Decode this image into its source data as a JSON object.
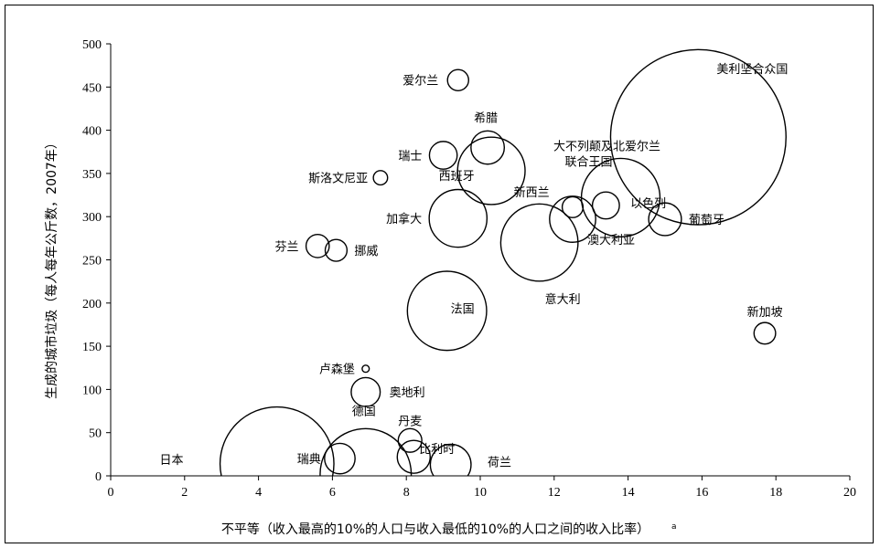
{
  "chart_data": {
    "type": "scatter",
    "subtype": "bubble",
    "title": "",
    "xlabel": "不平等（收入最高的10%的人口与收入最低的10%的人口之间的收入比率）",
    "xlabel_superscript": "a",
    "ylabel": "生成的城市垃圾（每人每年公斤数，2007年）",
    "xlim": [
      0,
      20
    ],
    "ylim": [
      0,
      500
    ],
    "xticks": [
      0,
      2,
      4,
      6,
      8,
      10,
      12,
      14,
      16,
      18,
      20
    ],
    "yticks": [
      0,
      50,
      100,
      150,
      200,
      250,
      300,
      350,
      400,
      450,
      500
    ],
    "grid": false,
    "legend": "none",
    "bubble_color": "#000000",
    "points": [
      {
        "label": "美利坚合众国",
        "x": 15.9,
        "y": 392,
        "size": 304
      },
      {
        "label": "爱尔兰",
        "x": 9.4,
        "y": 458,
        "size": 4.4
      },
      {
        "label": "希腊",
        "x": 10.2,
        "y": 380,
        "size": 11
      },
      {
        "label": "瑞士",
        "x": 9.0,
        "y": 371,
        "size": 7.6
      },
      {
        "label": "斯洛文尼亚",
        "x": 7.3,
        "y": 345,
        "size": 2
      },
      {
        "label": "西班牙",
        "x": 10.3,
        "y": 353,
        "size": 45
      },
      {
        "label": "大不列颠及北爱尔兰联合王国",
        "x": 13.8,
        "y": 322,
        "size": 61
      },
      {
        "label": "新西兰",
        "x": 12.5,
        "y": 311,
        "size": 4.3
      },
      {
        "label": "以色列",
        "x": 13.4,
        "y": 313,
        "size": 7.2
      },
      {
        "label": "葡萄牙",
        "x": 15.0,
        "y": 297,
        "size": 10.6
      },
      {
        "label": "加拿大",
        "x": 9.4,
        "y": 298,
        "size": 33
      },
      {
        "label": "澳大利亚",
        "x": 12.5,
        "y": 297,
        "size": 21
      },
      {
        "label": "意大利",
        "x": 11.6,
        "y": 270,
        "size": 59
      },
      {
        "label": "芬兰",
        "x": 5.6,
        "y": 266,
        "size": 5.3
      },
      {
        "label": "挪威",
        "x": 6.1,
        "y": 261,
        "size": 4.7
      },
      {
        "label": "法国",
        "x": 9.1,
        "y": 191,
        "size": 62
      },
      {
        "label": "新加坡",
        "x": 17.7,
        "y": 165,
        "size": 4.6
      },
      {
        "label": "卢森堡",
        "x": 6.9,
        "y": 124,
        "size": 0.5
      },
      {
        "label": "奥地利",
        "x": 6.9,
        "y": 97,
        "size": 8.3
      },
      {
        "label": "丹麦",
        "x": 8.1,
        "y": 41,
        "size": 5.5
      },
      {
        "label": "比利时",
        "x": 8.2,
        "y": 22,
        "size": 10.7
      },
      {
        "label": "日本",
        "x": 4.5,
        "y": 14,
        "size": 128
      },
      {
        "label": "瑞典",
        "x": 6.2,
        "y": 20,
        "size": 9.2
      },
      {
        "label": "德国",
        "x": 6.9,
        "y": 2,
        "size": 82
      },
      {
        "label": "荷兰",
        "x": 9.2,
        "y": 13,
        "size": 16.4
      }
    ]
  }
}
